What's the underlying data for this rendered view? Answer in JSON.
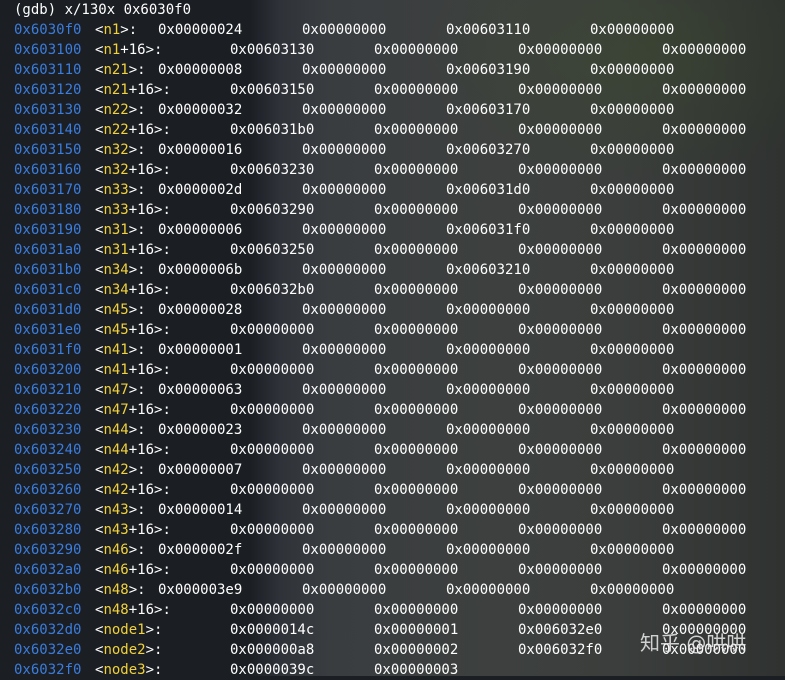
{
  "command": "(gdb) x/130x 0x6030f0",
  "rows": [
    {
      "addr": "0x6030f0",
      "name": "n1",
      "suffix": ">:",
      "values": [
        "0x00000024",
        "0x00000000",
        "0x00603110",
        "0x00000000"
      ]
    },
    {
      "addr": "0x603100",
      "name": "n1",
      "suffix": "+16>:",
      "values": [
        "0x00603130",
        "0x00000000",
        "0x00000000",
        "0x00000000"
      ]
    },
    {
      "addr": "0x603110",
      "name": "n21",
      "suffix": ">:",
      "values": [
        "0x00000008",
        "0x00000000",
        "0x00603190",
        "0x00000000"
      ]
    },
    {
      "addr": "0x603120",
      "name": "n21",
      "suffix": "+16>:",
      "values": [
        "0x00603150",
        "0x00000000",
        "0x00000000",
        "0x00000000"
      ]
    },
    {
      "addr": "0x603130",
      "name": "n22",
      "suffix": ">:",
      "values": [
        "0x00000032",
        "0x00000000",
        "0x00603170",
        "0x00000000"
      ]
    },
    {
      "addr": "0x603140",
      "name": "n22",
      "suffix": "+16>:",
      "values": [
        "0x006031b0",
        "0x00000000",
        "0x00000000",
        "0x00000000"
      ]
    },
    {
      "addr": "0x603150",
      "name": "n32",
      "suffix": ">:",
      "values": [
        "0x00000016",
        "0x00000000",
        "0x00603270",
        "0x00000000"
      ]
    },
    {
      "addr": "0x603160",
      "name": "n32",
      "suffix": "+16>:",
      "values": [
        "0x00603230",
        "0x00000000",
        "0x00000000",
        "0x00000000"
      ]
    },
    {
      "addr": "0x603170",
      "name": "n33",
      "suffix": ">:",
      "values": [
        "0x0000002d",
        "0x00000000",
        "0x006031d0",
        "0x00000000"
      ]
    },
    {
      "addr": "0x603180",
      "name": "n33",
      "suffix": "+16>:",
      "values": [
        "0x00603290",
        "0x00000000",
        "0x00000000",
        "0x00000000"
      ]
    },
    {
      "addr": "0x603190",
      "name": "n31",
      "suffix": ">:",
      "values": [
        "0x00000006",
        "0x00000000",
        "0x006031f0",
        "0x00000000"
      ]
    },
    {
      "addr": "0x6031a0",
      "name": "n31",
      "suffix": "+16>:",
      "values": [
        "0x00603250",
        "0x00000000",
        "0x00000000",
        "0x00000000"
      ]
    },
    {
      "addr": "0x6031b0",
      "name": "n34",
      "suffix": ">:",
      "values": [
        "0x0000006b",
        "0x00000000",
        "0x00603210",
        "0x00000000"
      ]
    },
    {
      "addr": "0x6031c0",
      "name": "n34",
      "suffix": "+16>:",
      "values": [
        "0x006032b0",
        "0x00000000",
        "0x00000000",
        "0x00000000"
      ]
    },
    {
      "addr": "0x6031d0",
      "name": "n45",
      "suffix": ">:",
      "values": [
        "0x00000028",
        "0x00000000",
        "0x00000000",
        "0x00000000"
      ]
    },
    {
      "addr": "0x6031e0",
      "name": "n45",
      "suffix": "+16>:",
      "values": [
        "0x00000000",
        "0x00000000",
        "0x00000000",
        "0x00000000"
      ]
    },
    {
      "addr": "0x6031f0",
      "name": "n41",
      "suffix": ">:",
      "values": [
        "0x00000001",
        "0x00000000",
        "0x00000000",
        "0x00000000"
      ]
    },
    {
      "addr": "0x603200",
      "name": "n41",
      "suffix": "+16>:",
      "values": [
        "0x00000000",
        "0x00000000",
        "0x00000000",
        "0x00000000"
      ]
    },
    {
      "addr": "0x603210",
      "name": "n47",
      "suffix": ">:",
      "values": [
        "0x00000063",
        "0x00000000",
        "0x00000000",
        "0x00000000"
      ]
    },
    {
      "addr": "0x603220",
      "name": "n47",
      "suffix": "+16>:",
      "values": [
        "0x00000000",
        "0x00000000",
        "0x00000000",
        "0x00000000"
      ]
    },
    {
      "addr": "0x603230",
      "name": "n44",
      "suffix": ">:",
      "values": [
        "0x00000023",
        "0x00000000",
        "0x00000000",
        "0x00000000"
      ]
    },
    {
      "addr": "0x603240",
      "name": "n44",
      "suffix": "+16>:",
      "values": [
        "0x00000000",
        "0x00000000",
        "0x00000000",
        "0x00000000"
      ]
    },
    {
      "addr": "0x603250",
      "name": "n42",
      "suffix": ">:",
      "values": [
        "0x00000007",
        "0x00000000",
        "0x00000000",
        "0x00000000"
      ]
    },
    {
      "addr": "0x603260",
      "name": "n42",
      "suffix": "+16>:",
      "values": [
        "0x00000000",
        "0x00000000",
        "0x00000000",
        "0x00000000"
      ]
    },
    {
      "addr": "0x603270",
      "name": "n43",
      "suffix": ">:",
      "values": [
        "0x00000014",
        "0x00000000",
        "0x00000000",
        "0x00000000"
      ]
    },
    {
      "addr": "0x603280",
      "name": "n43",
      "suffix": "+16>:",
      "values": [
        "0x00000000",
        "0x00000000",
        "0x00000000",
        "0x00000000"
      ]
    },
    {
      "addr": "0x603290",
      "name": "n46",
      "suffix": ">:",
      "values": [
        "0x0000002f",
        "0x00000000",
        "0x00000000",
        "0x00000000"
      ]
    },
    {
      "addr": "0x6032a0",
      "name": "n46",
      "suffix": "+16>:",
      "values": [
        "0x00000000",
        "0x00000000",
        "0x00000000",
        "0x00000000"
      ]
    },
    {
      "addr": "0x6032b0",
      "name": "n48",
      "suffix": ">:",
      "values": [
        "0x000003e9",
        "0x00000000",
        "0x00000000",
        "0x00000000"
      ]
    },
    {
      "addr": "0x6032c0",
      "name": "n48",
      "suffix": "+16>:",
      "values": [
        "0x00000000",
        "0x00000000",
        "0x00000000",
        "0x00000000"
      ]
    },
    {
      "addr": "0x6032d0",
      "name": "node1",
      "suffix": ">:",
      "values": [
        "0x0000014c",
        "0x00000001",
        "0x006032e0",
        "0x00000000"
      ]
    },
    {
      "addr": "0x6032e0",
      "name": "node2",
      "suffix": ">:",
      "values": [
        "0x000000a8",
        "0x00000002",
        "0x006032f0",
        "0x00000000"
      ]
    },
    {
      "addr": "0x6032f0",
      "name": "node3",
      "suffix": ">:",
      "values": [
        "0x0000039c",
        "0x00000003",
        "",
        ""
      ]
    }
  ],
  "watermark": "知乎 @哄哄",
  "colors": {
    "address": "#3b7ddd",
    "symbol": "#f1d23a",
    "text": "#ffffff",
    "background": "#1b1e23"
  }
}
